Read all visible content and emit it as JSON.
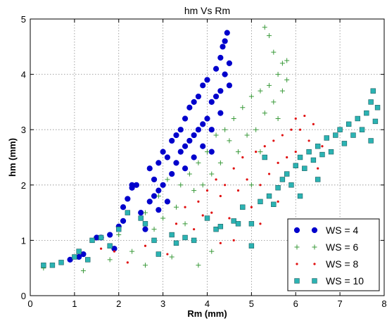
{
  "chart_data": {
    "type": "scatter",
    "title": "hm Vs Rm",
    "xlabel": "Rm (mm)",
    "ylabel": "hm (mm)",
    "xlim": [
      0,
      8
    ],
    "ylim": [
      0,
      5
    ],
    "xticks": [
      "0",
      "1",
      "2",
      "3",
      "4",
      "5",
      "6",
      "7",
      "8"
    ],
    "yticks": [
      "0",
      "1",
      "2",
      "3",
      "4",
      "5"
    ],
    "grid": true,
    "legend_position": "lower-right",
    "series": [
      {
        "name": "WS = 4",
        "marker": "circle",
        "color": "#0000cc",
        "points": [
          [
            0.9,
            0.65
          ],
          [
            1.1,
            0.7
          ],
          [
            1.2,
            0.75
          ],
          [
            1.5,
            1.05
          ],
          [
            1.6,
            1.05
          ],
          [
            1.8,
            1.1
          ],
          [
            1.9,
            0.85
          ],
          [
            2.0,
            1.25
          ],
          [
            2.1,
            1.35
          ],
          [
            2.1,
            1.6
          ],
          [
            2.2,
            1.75
          ],
          [
            2.3,
            1.95
          ],
          [
            2.4,
            2.0
          ],
          [
            2.3,
            2.0
          ],
          [
            2.5,
            1.5
          ],
          [
            2.6,
            1.2
          ],
          [
            2.7,
            1.7
          ],
          [
            2.7,
            2.3
          ],
          [
            2.8,
            1.8
          ],
          [
            2.8,
            2.1
          ],
          [
            2.9,
            1.9
          ],
          [
            2.9,
            2.4
          ],
          [
            3.0,
            2.0
          ],
          [
            3.0,
            2.6
          ],
          [
            3.1,
            1.7
          ],
          [
            3.1,
            2.5
          ],
          [
            3.2,
            2.2
          ],
          [
            3.2,
            2.8
          ],
          [
            3.3,
            2.4
          ],
          [
            3.3,
            2.9
          ],
          [
            3.4,
            2.6
          ],
          [
            3.4,
            3.0
          ],
          [
            3.5,
            2.7
          ],
          [
            3.5,
            3.2
          ],
          [
            3.6,
            2.8
          ],
          [
            3.6,
            3.4
          ],
          [
            3.7,
            2.9
          ],
          [
            3.7,
            3.5
          ],
          [
            3.8,
            3.0
          ],
          [
            3.8,
            3.6
          ],
          [
            3.9,
            3.1
          ],
          [
            3.9,
            3.8
          ],
          [
            4.0,
            3.2
          ],
          [
            4.0,
            3.9
          ],
          [
            4.1,
            3.0
          ],
          [
            4.1,
            3.5
          ],
          [
            4.2,
            3.6
          ],
          [
            4.2,
            4.1
          ],
          [
            4.3,
            3.7
          ],
          [
            4.3,
            4.3
          ],
          [
            4.35,
            4.5
          ],
          [
            4.4,
            4.0
          ],
          [
            4.4,
            4.6
          ],
          [
            4.45,
            4.75
          ],
          [
            4.5,
            4.2
          ],
          [
            4.5,
            3.8
          ],
          [
            3.7,
            2.5
          ],
          [
            3.9,
            2.7
          ],
          [
            4.1,
            2.6
          ],
          [
            2.9,
            1.55
          ],
          [
            3.5,
            2.3
          ],
          [
            4.3,
            3.3
          ]
        ]
      },
      {
        "name": "WS = 6",
        "marker": "plus",
        "color": "#3a9a3a",
        "points": [
          [
            0.3,
            0.5
          ],
          [
            1.2,
            0.45
          ],
          [
            1.8,
            0.65
          ],
          [
            2.0,
            1.1
          ],
          [
            2.3,
            0.8
          ],
          [
            2.6,
            0.55
          ],
          [
            2.6,
            1.5
          ],
          [
            2.8,
            1.2
          ],
          [
            2.9,
            1.8
          ],
          [
            3.0,
            1.4
          ],
          [
            3.1,
            2.1
          ],
          [
            3.3,
            1.6
          ],
          [
            3.4,
            2.0
          ],
          [
            3.5,
            1.3
          ],
          [
            3.6,
            2.2
          ],
          [
            3.7,
            1.9
          ],
          [
            3.8,
            2.4
          ],
          [
            3.9,
            2.0
          ],
          [
            4.0,
            2.6
          ],
          [
            4.1,
            2.2
          ],
          [
            4.2,
            2.9
          ],
          [
            4.3,
            2.4
          ],
          [
            4.4,
            3.0
          ],
          [
            4.5,
            2.8
          ],
          [
            4.6,
            3.2
          ],
          [
            4.7,
            2.6
          ],
          [
            4.8,
            3.4
          ],
          [
            4.9,
            2.9
          ],
          [
            5.0,
            3.6
          ],
          [
            5.1,
            3.0
          ],
          [
            5.2,
            3.7
          ],
          [
            5.3,
            3.3
          ],
          [
            5.3,
            4.85
          ],
          [
            5.4,
            3.8
          ],
          [
            5.4,
            4.7
          ],
          [
            5.5,
            3.5
          ],
          [
            5.6,
            4.0
          ],
          [
            5.6,
            3.2
          ],
          [
            5.7,
            4.2
          ],
          [
            5.7,
            3.7
          ],
          [
            5.8,
            3.9
          ],
          [
            5.8,
            4.25
          ],
          [
            5.5,
            4.4
          ],
          [
            5.2,
            2.6
          ],
          [
            3.8,
            0.55
          ],
          [
            4.1,
            0.8
          ],
          [
            3.2,
            0.7
          ],
          [
            5.0,
            2.0
          ]
        ]
      },
      {
        "name": "WS = 8",
        "marker": "point",
        "color": "#e01010",
        "points": [
          [
            1.6,
            0.85
          ],
          [
            1.9,
            0.8
          ],
          [
            2.2,
            0.6
          ],
          [
            2.6,
            0.9
          ],
          [
            3.1,
            0.75
          ],
          [
            3.3,
            1.3
          ],
          [
            3.5,
            1.6
          ],
          [
            3.7,
            1.2
          ],
          [
            3.8,
            1.7
          ],
          [
            3.9,
            1.45
          ],
          [
            4.0,
            1.9
          ],
          [
            4.1,
            1.5
          ],
          [
            4.2,
            2.1
          ],
          [
            4.3,
            1.8
          ],
          [
            4.4,
            2.0
          ],
          [
            4.5,
            1.4
          ],
          [
            4.6,
            2.3
          ],
          [
            4.7,
            1.9
          ],
          [
            4.8,
            2.5
          ],
          [
            4.9,
            2.1
          ],
          [
            5.0,
            1.6
          ],
          [
            5.1,
            2.6
          ],
          [
            5.2,
            2.0
          ],
          [
            5.3,
            2.7
          ],
          [
            5.4,
            2.2
          ],
          [
            5.5,
            2.8
          ],
          [
            5.6,
            2.4
          ],
          [
            5.7,
            2.9
          ],
          [
            5.8,
            2.5
          ],
          [
            5.9,
            3.0
          ],
          [
            6.0,
            2.6
          ],
          [
            6.0,
            3.2
          ],
          [
            6.1,
            3.0
          ],
          [
            6.2,
            3.25
          ],
          [
            6.3,
            2.8
          ],
          [
            6.4,
            3.1
          ],
          [
            6.5,
            2.3
          ],
          [
            6.6,
            2.7
          ],
          [
            4.3,
            0.95
          ],
          [
            4.6,
            1.0
          ],
          [
            5.2,
            1.3
          ],
          [
            5.6,
            1.7
          ]
        ]
      },
      {
        "name": "WS = 10",
        "marker": "square",
        "color": "#2bb3b3",
        "points": [
          [
            0.3,
            0.55
          ],
          [
            0.5,
            0.55
          ],
          [
            0.7,
            0.6
          ],
          [
            1.0,
            0.7
          ],
          [
            1.1,
            0.8
          ],
          [
            1.3,
            0.65
          ],
          [
            1.4,
            1.0
          ],
          [
            1.6,
            1.05
          ],
          [
            1.8,
            0.9
          ],
          [
            2.0,
            1.2
          ],
          [
            2.2,
            1.5
          ],
          [
            2.5,
            1.4
          ],
          [
            2.6,
            1.3
          ],
          [
            2.8,
            1.0
          ],
          [
            2.9,
            0.75
          ],
          [
            3.2,
            1.1
          ],
          [
            3.5,
            1.05
          ],
          [
            3.7,
            1.0
          ],
          [
            4.0,
            1.4
          ],
          [
            4.2,
            1.2
          ],
          [
            4.3,
            1.25
          ],
          [
            4.6,
            1.35
          ],
          [
            4.8,
            1.6
          ],
          [
            5.0,
            1.3
          ],
          [
            5.2,
            1.7
          ],
          [
            5.4,
            1.8
          ],
          [
            5.5,
            1.65
          ],
          [
            5.6,
            1.95
          ],
          [
            5.7,
            2.1
          ],
          [
            5.8,
            2.2
          ],
          [
            5.9,
            2.0
          ],
          [
            6.0,
            2.35
          ],
          [
            6.1,
            2.5
          ],
          [
            6.2,
            2.3
          ],
          [
            6.3,
            2.6
          ],
          [
            6.4,
            2.45
          ],
          [
            6.5,
            2.7
          ],
          [
            6.6,
            2.55
          ],
          [
            6.7,
            2.85
          ],
          [
            6.8,
            2.6
          ],
          [
            6.9,
            2.9
          ],
          [
            7.0,
            3.0
          ],
          [
            7.1,
            2.75
          ],
          [
            7.2,
            3.1
          ],
          [
            7.3,
            2.9
          ],
          [
            7.4,
            3.2
          ],
          [
            7.5,
            3.0
          ],
          [
            7.6,
            3.3
          ],
          [
            7.7,
            3.5
          ],
          [
            7.7,
            2.8
          ],
          [
            7.75,
            3.7
          ],
          [
            7.8,
            3.15
          ],
          [
            7.85,
            3.4
          ],
          [
            5.0,
            0.9
          ],
          [
            4.7,
            1.3
          ],
          [
            6.1,
            1.8
          ],
          [
            6.5,
            2.1
          ],
          [
            5.3,
            2.5
          ],
          [
            3.3,
            0.95
          ]
        ]
      }
    ]
  }
}
